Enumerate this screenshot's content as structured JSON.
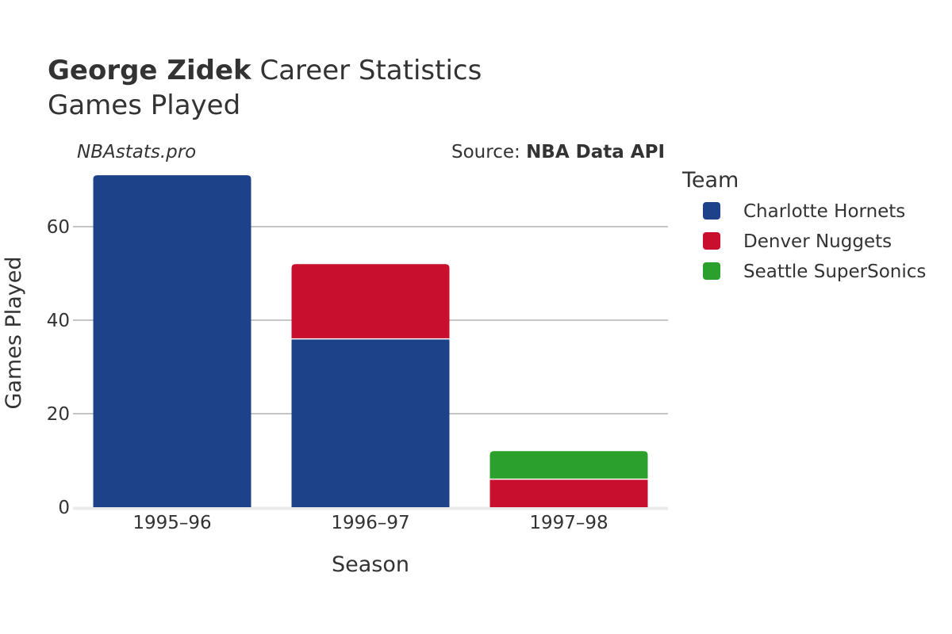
{
  "header": {
    "player_name": "George Zidek",
    "title_rest": "Career Statistics",
    "subtitle": "Games Played"
  },
  "credit": "NBAstats.pro",
  "source": {
    "prefix": "Source:",
    "name": "NBA Data API"
  },
  "colors": {
    "Charlotte Hornets": "#1d428a",
    "Denver Nuggets": "#c8102e",
    "Seattle SuperSonics": "#2ca02c",
    "grid": "#8c8c8c",
    "text": "#333333",
    "axis_line": "#ebebeb"
  },
  "chart_data": {
    "type": "bar",
    "stacked": true,
    "title": "George Zidek Career Statistics",
    "subtitle": "Games Played",
    "xlabel": "Season",
    "ylabel": "Games Played",
    "categories": [
      "1995–96",
      "1996–97",
      "1997–98"
    ],
    "series": [
      {
        "name": "Charlotte Hornets",
        "values": [
          71,
          36,
          0
        ]
      },
      {
        "name": "Denver Nuggets",
        "values": [
          0,
          16,
          6
        ]
      },
      {
        "name": "Seattle SuperSonics",
        "values": [
          0,
          0,
          6
        ]
      }
    ],
    "ylim": [
      0,
      75
    ],
    "yticks": [
      0,
      20,
      40,
      60
    ],
    "grid": true,
    "legend": {
      "title": "Team",
      "position": "right"
    }
  }
}
